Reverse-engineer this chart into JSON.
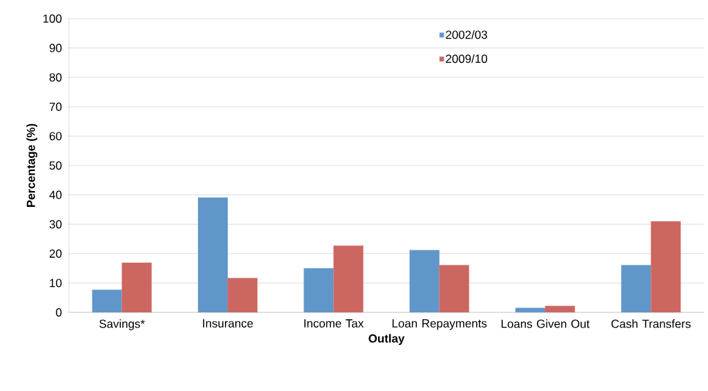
{
  "chart_data": {
    "type": "bar",
    "xlabel": "Outlay",
    "ylabel": "Percentage (%)",
    "categories": [
      "Savings*",
      "Insurance",
      "Income Tax",
      "Loan Repayments",
      "Loans Given Out",
      "Cash Transfers"
    ],
    "series": [
      {
        "name": "2002/03",
        "color": "#6096c9",
        "values": [
          7.7,
          39.1,
          15.0,
          21.2,
          1.5,
          16.1
        ]
      },
      {
        "name": "2009/10",
        "color": "#cc6660",
        "values": [
          16.9,
          11.7,
          22.7,
          16.1,
          2.2,
          31.0
        ]
      }
    ],
    "ylim": [
      0,
      100
    ],
    "yticks": [
      0,
      10,
      20,
      30,
      40,
      50,
      60,
      70,
      80,
      90,
      100
    ],
    "grid": "y",
    "legend": "top"
  }
}
